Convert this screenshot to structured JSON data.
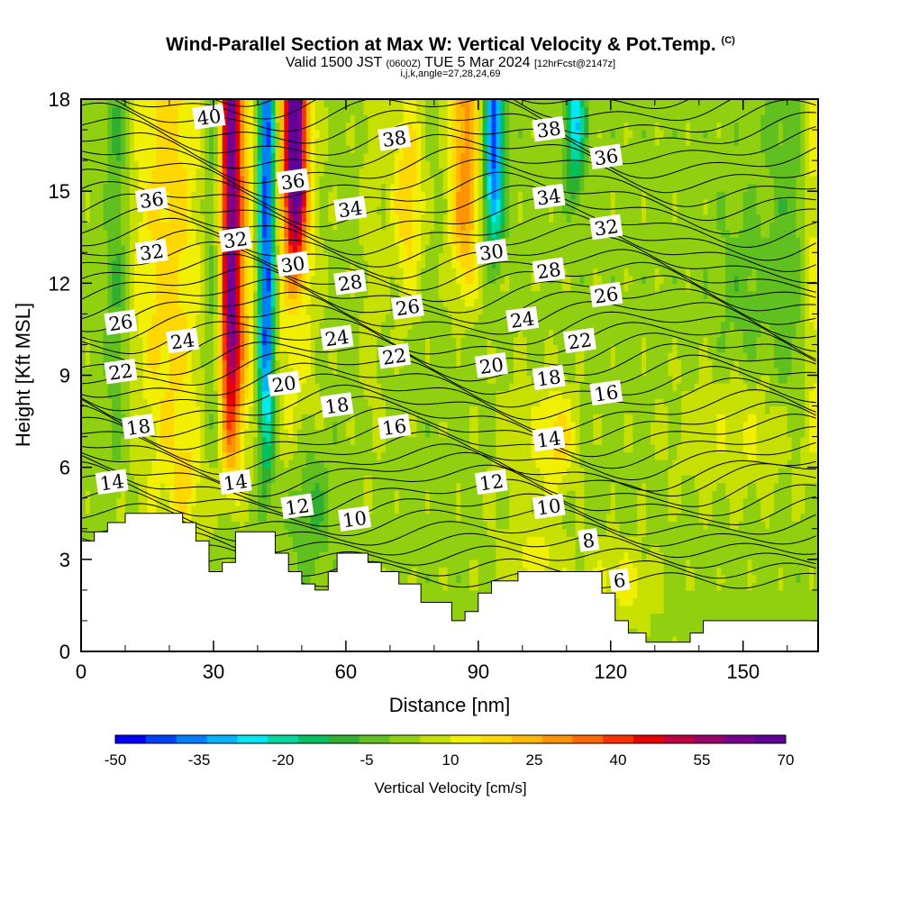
{
  "header": {
    "title": "Wind-Parallel Section at Max W: Vertical Velocity & Pot.Temp.",
    "copyright": "(C)",
    "valid_prefix": "Valid 1500 JST",
    "valid_utc": "(0600Z)",
    "valid_date": "TUE 5 Mar 2024",
    "forecast": "[12hrFcst@2147z]",
    "indices": "i,j,k,angle=27,28,24,69"
  },
  "chart_data": {
    "type": "heatmap",
    "xlabel": "Distance [nm]",
    "ylabel": "Height [Kft MSL]",
    "xlim": [
      0,
      167
    ],
    "ylim": [
      0,
      18
    ],
    "xticks": [
      "0",
      "30",
      "60",
      "90",
      "120",
      "150"
    ],
    "yticks": [
      "0",
      "3",
      "6",
      "9",
      "12",
      "15",
      "18"
    ],
    "colorbar": {
      "title": "Vertical Velocity [cm/s]",
      "ticks": [
        "-50",
        "-35",
        "-20",
        "-5",
        "10",
        "25",
        "40",
        "55",
        "70"
      ],
      "range": [
        -50,
        70
      ],
      "colors": [
        "#0000ff",
        "#0040ff",
        "#0080ff",
        "#00b4ff",
        "#00e8f0",
        "#00d8a0",
        "#00c060",
        "#30b030",
        "#60c020",
        "#90d010",
        "#c8e000",
        "#f0f000",
        "#ffd800",
        "#ffb800",
        "#ff9400",
        "#ff6a00",
        "#ff3000",
        "#e80000",
        "#c00040",
        "#98006a",
        "#780090",
        "#600098"
      ]
    },
    "terrain_kft": [
      [
        0,
        3.6
      ],
      [
        3,
        3.6
      ],
      [
        3,
        3.9
      ],
      [
        6,
        3.9
      ],
      [
        6,
        4.2
      ],
      [
        10,
        4.2
      ],
      [
        10,
        4.5
      ],
      [
        23,
        4.5
      ],
      [
        23,
        4.2
      ],
      [
        26,
        4.2
      ],
      [
        26,
        3.6
      ],
      [
        29,
        3.6
      ],
      [
        29,
        2.6
      ],
      [
        32,
        2.6
      ],
      [
        32,
        2.9
      ],
      [
        35,
        2.9
      ],
      [
        35,
        3.9
      ],
      [
        44,
        3.9
      ],
      [
        44,
        3.2
      ],
      [
        47,
        3.2
      ],
      [
        47,
        2.6
      ],
      [
        50,
        2.6
      ],
      [
        50,
        2.2
      ],
      [
        53,
        2.2
      ],
      [
        53,
        2.0
      ],
      [
        56,
        2.0
      ],
      [
        56,
        2.6
      ],
      [
        58,
        2.6
      ],
      [
        58,
        3.2
      ],
      [
        65,
        3.2
      ],
      [
        65,
        2.9
      ],
      [
        68,
        2.9
      ],
      [
        68,
        2.6
      ],
      [
        72,
        2.6
      ],
      [
        72,
        2.2
      ],
      [
        77,
        2.2
      ],
      [
        77,
        1.6
      ],
      [
        84,
        1.6
      ],
      [
        84,
        1.0
      ],
      [
        87,
        1.0
      ],
      [
        87,
        1.3
      ],
      [
        90,
        1.3
      ],
      [
        90,
        1.9
      ],
      [
        93,
        1.9
      ],
      [
        93,
        2.3
      ],
      [
        99,
        2.3
      ],
      [
        99,
        2.6
      ],
      [
        118,
        2.6
      ],
      [
        118,
        1.9
      ],
      [
        121,
        1.9
      ],
      [
        121,
        1.0
      ],
      [
        124,
        1.0
      ],
      [
        124,
        0.6
      ],
      [
        128,
        0.6
      ],
      [
        128,
        0.3
      ],
      [
        138,
        0.3
      ],
      [
        138,
        0.6
      ],
      [
        141,
        0.6
      ],
      [
        141,
        1.0
      ],
      [
        167,
        1.0
      ]
    ],
    "isentrope_labels": [
      {
        "text": "40",
        "x": 29,
        "y": 17.4
      },
      {
        "text": "38",
        "x": 71,
        "y": 16.7
      },
      {
        "text": "38",
        "x": 106,
        "y": 17.0
      },
      {
        "text": "36",
        "x": 119,
        "y": 16.1
      },
      {
        "text": "36",
        "x": 16,
        "y": 14.7
      },
      {
        "text": "36",
        "x": 48,
        "y": 15.3
      },
      {
        "text": "34",
        "x": 61,
        "y": 14.4
      },
      {
        "text": "34",
        "x": 106,
        "y": 14.8
      },
      {
        "text": "32",
        "x": 16,
        "y": 13.0
      },
      {
        "text": "32",
        "x": 35,
        "y": 13.4
      },
      {
        "text": "32",
        "x": 119,
        "y": 13.8
      },
      {
        "text": "30",
        "x": 48,
        "y": 12.6
      },
      {
        "text": "30",
        "x": 93,
        "y": 13.0
      },
      {
        "text": "28",
        "x": 61,
        "y": 12.0
      },
      {
        "text": "28",
        "x": 106,
        "y": 12.4
      },
      {
        "text": "26",
        "x": 9,
        "y": 10.7
      },
      {
        "text": "26",
        "x": 74,
        "y": 11.2
      },
      {
        "text": "26",
        "x": 119,
        "y": 11.6
      },
      {
        "text": "24",
        "x": 23,
        "y": 10.1
      },
      {
        "text": "24",
        "x": 58,
        "y": 10.2
      },
      {
        "text": "24",
        "x": 100,
        "y": 10.8
      },
      {
        "text": "22",
        "x": 9,
        "y": 9.1
      },
      {
        "text": "22",
        "x": 71,
        "y": 9.6
      },
      {
        "text": "22",
        "x": 113,
        "y": 10.1
      },
      {
        "text": "20",
        "x": 46,
        "y": 8.7
      },
      {
        "text": "20",
        "x": 93,
        "y": 9.3
      },
      {
        "text": "18",
        "x": 13,
        "y": 7.3
      },
      {
        "text": "18",
        "x": 58,
        "y": 8.0
      },
      {
        "text": "18",
        "x": 106,
        "y": 8.9
      },
      {
        "text": "16",
        "x": 71,
        "y": 7.3
      },
      {
        "text": "16",
        "x": 119,
        "y": 8.4
      },
      {
        "text": "14",
        "x": 7,
        "y": 5.5
      },
      {
        "text": "14",
        "x": 35,
        "y": 5.5
      },
      {
        "text": "14",
        "x": 106,
        "y": 6.9
      },
      {
        "text": "12",
        "x": 49,
        "y": 4.7
      },
      {
        "text": "12",
        "x": 93,
        "y": 5.5
      },
      {
        "text": "10",
        "x": 62,
        "y": 4.3
      },
      {
        "text": "10",
        "x": 106,
        "y": 4.7
      },
      {
        "text": "8",
        "x": 115,
        "y": 3.6
      },
      {
        "text": "6",
        "x": 122,
        "y": 2.3
      }
    ]
  }
}
